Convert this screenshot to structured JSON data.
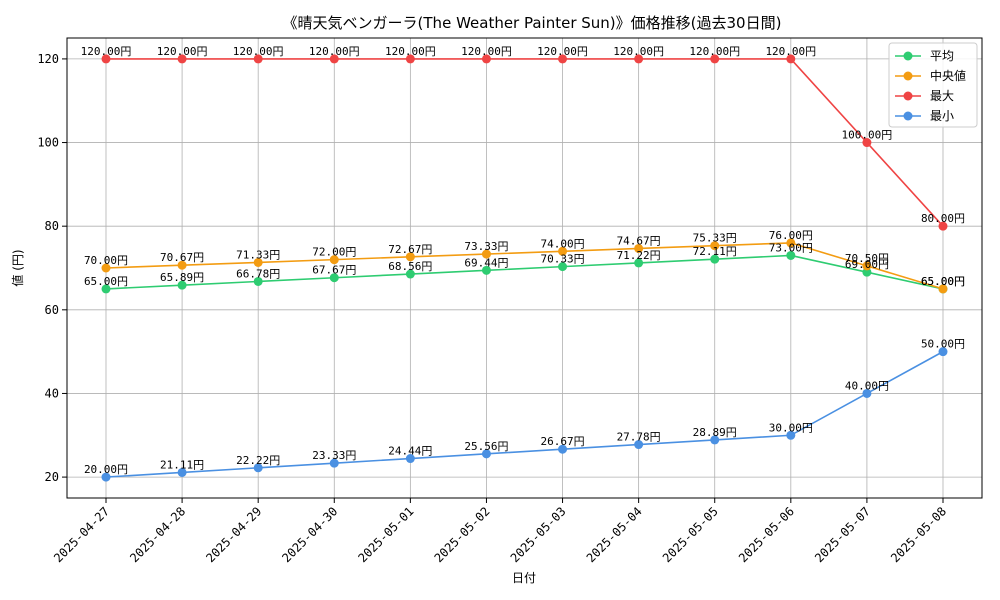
{
  "chart_data": {
    "type": "line",
    "title": "《晴天気ベンガーラ(The Weather Painter Sun)》価格推移(過去30日間)",
    "xlabel": "日付",
    "ylabel": "値 (円)",
    "categories": [
      "2025-04-27",
      "2025-04-28",
      "2025-04-29",
      "2025-04-30",
      "2025-05-01",
      "2025-05-02",
      "2025-05-03",
      "2025-05-04",
      "2025-05-05",
      "2025-05-06",
      "2025-05-07",
      "2025-05-08"
    ],
    "ylim": [
      15,
      125
    ],
    "yticks": [
      20,
      40,
      60,
      80,
      100,
      120
    ],
    "grid": true,
    "legend_position": "top-right",
    "value_suffix": "円",
    "series": [
      {
        "name": "平均",
        "color": "#2ecc71",
        "values": [
          65.0,
          65.89,
          66.78,
          67.67,
          68.56,
          69.44,
          70.33,
          71.22,
          72.11,
          73.0,
          69.0,
          65.0
        ]
      },
      {
        "name": "中央値",
        "color": "#f39c12",
        "values": [
          70.0,
          70.67,
          71.33,
          72.0,
          72.67,
          73.33,
          74.0,
          74.67,
          75.33,
          76.0,
          70.5,
          65.0
        ]
      },
      {
        "name": "最大",
        "color": "#ef4444",
        "values": [
          120.0,
          120.0,
          120.0,
          120.0,
          120.0,
          120.0,
          120.0,
          120.0,
          120.0,
          120.0,
          100.0,
          80.0
        ]
      },
      {
        "name": "最小",
        "color": "#4a90e2",
        "values": [
          20.0,
          21.11,
          22.22,
          23.33,
          24.44,
          25.56,
          26.67,
          27.78,
          28.89,
          30.0,
          40.0,
          50.0
        ]
      }
    ]
  }
}
